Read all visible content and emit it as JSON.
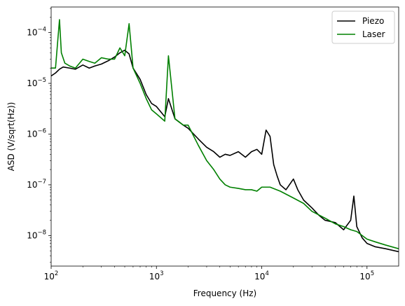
{
  "chart_data": {
    "type": "line",
    "xlabel": "Frequency (Hz)",
    "ylabel": "ASD (V/sqrt(Hz))",
    "x_scale": "log",
    "y_scale": "log",
    "xlim": [
      100,
      200000
    ],
    "ylim": [
      2.5e-09,
      0.00032
    ],
    "x_ticks": [
      {
        "value": 100,
        "base": "10",
        "exp": "2"
      },
      {
        "value": 1000,
        "base": "10",
        "exp": "3"
      },
      {
        "value": 10000,
        "base": "10",
        "exp": "4"
      },
      {
        "value": 100000,
        "base": "10",
        "exp": "5"
      }
    ],
    "y_ticks": [
      {
        "value": 1e-08,
        "base": "10",
        "exp": "−8"
      },
      {
        "value": 1e-07,
        "base": "10",
        "exp": "−7"
      },
      {
        "value": 1e-06,
        "base": "10",
        "exp": "−6"
      },
      {
        "value": 1e-05,
        "base": "10",
        "exp": "−5"
      },
      {
        "value": 0.0001,
        "base": "10",
        "exp": "−4"
      }
    ],
    "grid": false,
    "legend_position": "top-right",
    "series": [
      {
        "name": "Piezo",
        "color": "#000000",
        "x": [
          100,
          110,
          120,
          130,
          150,
          170,
          200,
          230,
          260,
          300,
          350,
          400,
          450,
          500,
          550,
          600,
          700,
          800,
          900,
          1000,
          1200,
          1300,
          1500,
          1800,
          2000,
          2500,
          3000,
          3500,
          4000,
          4500,
          5000,
          6000,
          7000,
          8000,
          9000,
          10000,
          11000,
          12000,
          13000,
          14000,
          15000,
          17000,
          20000,
          22000,
          25000,
          30000,
          35000,
          40000,
          50000,
          60000,
          70000,
          75000,
          80000,
          90000,
          100000,
          120000,
          150000,
          200000
        ],
        "y": [
          1.4e-05,
          1.6e-05,
          1.9e-05,
          2.1e-05,
          2e-05,
          1.9e-05,
          2.3e-05,
          2e-05,
          2.2e-05,
          2.4e-05,
          2.8e-05,
          3.3e-05,
          4e-05,
          4.5e-05,
          3.8e-05,
          2e-05,
          1.2e-05,
          6e-06,
          4e-06,
          3.5e-06,
          2.2e-06,
          5e-06,
          2e-06,
          1.5e-06,
          1.3e-06,
          8e-07,
          5.5e-07,
          4.5e-07,
          3.5e-07,
          4e-07,
          3.8e-07,
          4.5e-07,
          3.5e-07,
          4.5e-07,
          5e-07,
          4e-07,
          1.2e-06,
          9e-07,
          2.5e-07,
          1.5e-07,
          1e-07,
          8e-08,
          1.3e-07,
          8e-08,
          5e-08,
          3.5e-08,
          2.5e-08,
          2e-08,
          1.8e-08,
          1.3e-08,
          2e-08,
          6e-08,
          1.5e-08,
          9e-09,
          7e-09,
          6e-09,
          5.5e-09,
          4.8e-09
        ]
      },
      {
        "name": "Laser",
        "color": "#008000",
        "x": [
          100,
          110,
          120,
          125,
          135,
          150,
          170,
          200,
          230,
          260,
          300,
          350,
          400,
          450,
          500,
          550,
          600,
          700,
          800,
          900,
          1000,
          1200,
          1300,
          1500,
          1800,
          2000,
          2500,
          3000,
          3500,
          4000,
          4500,
          5000,
          6000,
          7000,
          8000,
          9000,
          10000,
          12000,
          15000,
          20000,
          25000,
          30000,
          40000,
          50000,
          60000,
          70000,
          80000,
          90000,
          100000,
          120000,
          150000,
          200000
        ],
        "y": [
          2e-05,
          2e-05,
          0.00018,
          4e-05,
          2.5e-05,
          2.2e-05,
          2e-05,
          3e-05,
          2.7e-05,
          2.5e-05,
          3.2e-05,
          3e-05,
          3e-05,
          5e-05,
          3.5e-05,
          0.00015,
          2e-05,
          1e-05,
          5e-06,
          3e-06,
          2.5e-06,
          1.8e-06,
          3.5e-05,
          2e-06,
          1.5e-06,
          1.5e-06,
          6e-07,
          3e-07,
          2e-07,
          1.3e-07,
          1e-07,
          9e-08,
          8.5e-08,
          8e-08,
          8e-08,
          7.5e-08,
          9e-08,
          9e-08,
          7.5e-08,
          5.5e-08,
          4.3e-08,
          3e-08,
          2.2e-08,
          1.7e-08,
          1.5e-08,
          1.3e-08,
          1.2e-08,
          1e-08,
          8.5e-09,
          7.5e-09,
          6.5e-09,
          5.5e-09
        ]
      }
    ]
  }
}
